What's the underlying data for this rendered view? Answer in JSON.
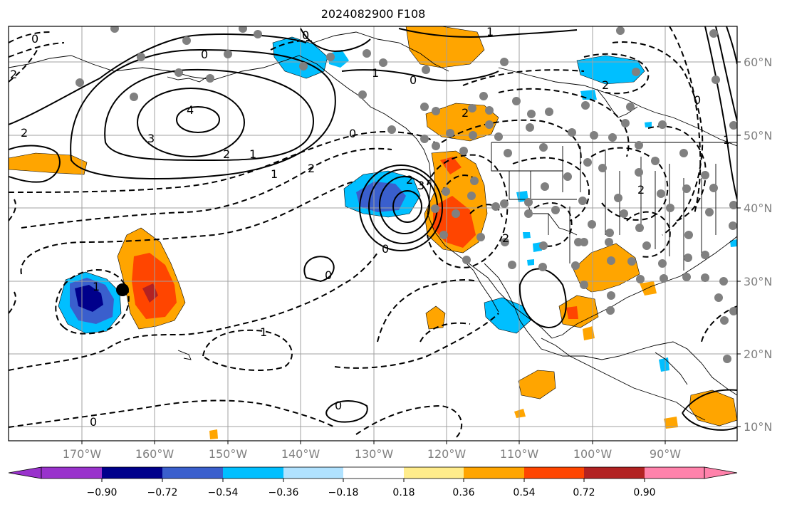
{
  "title": "2024082900 F108",
  "longitude_labels": [
    "170°W",
    "160°W",
    "150°W",
    "140°W",
    "130°W",
    "120°W",
    "110°W",
    "100°W",
    "90°W"
  ],
  "latitude_labels": [
    "60°N",
    "50°N",
    "40°N",
    "30°N",
    "20°N",
    "10°N"
  ],
  "colorbar": {
    "colors": [
      "#9932cc",
      "#00008b",
      "#3a5fcd",
      "#00bfff",
      "#b0e2ff",
      "#ffffff",
      "#ffec8b",
      "#ffa500",
      "#ff4500",
      "#b22222",
      "#ff82ab"
    ],
    "tick_labels": [
      "−0.90",
      "−0.72",
      "−0.54",
      "−0.36",
      "−0.18",
      "0.18",
      "0.36",
      "0.54",
      "0.72",
      "0.90"
    ]
  },
  "contour_labels": [
    "0",
    "1",
    "0",
    "0",
    "1",
    "2",
    "4",
    "3",
    "2",
    "2",
    "1",
    "0",
    "1",
    "2",
    "2",
    "1",
    "2",
    "3",
    "0",
    "0",
    "1",
    "0",
    "0",
    "2",
    "2",
    "0",
    "0",
    "1",
    "2"
  ],
  "marker_color": "#808080"
}
